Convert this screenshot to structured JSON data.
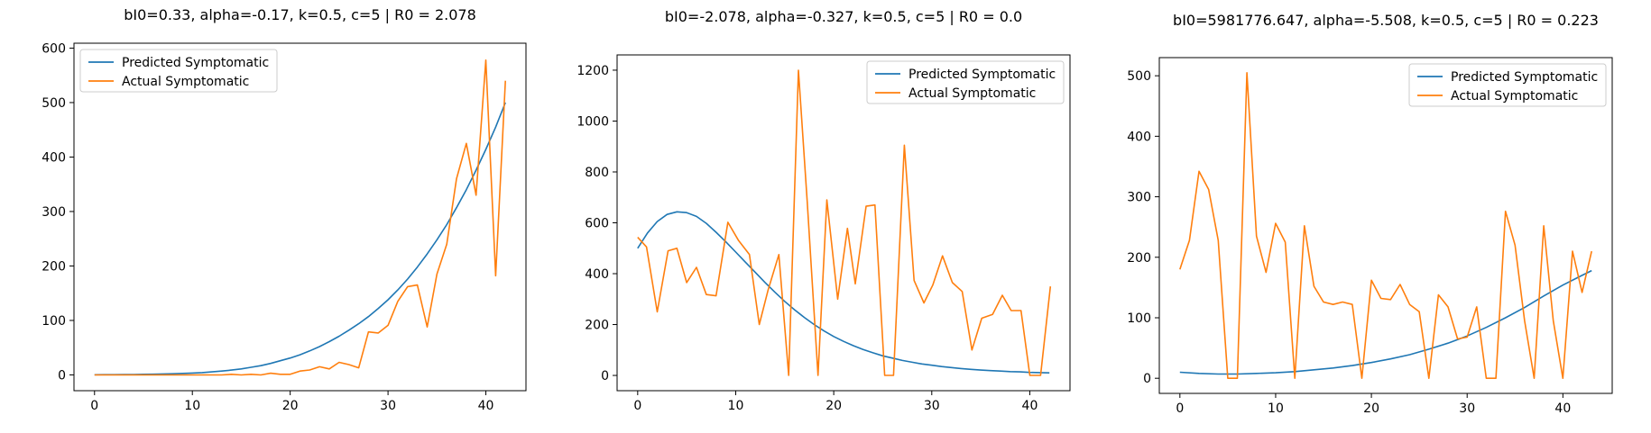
{
  "chart_data": [
    {
      "type": "line",
      "title": "bI0=0.33, alpha=-0.17, k=0.5, c=5 | R0 = 2.078",
      "xlabel": "",
      "ylabel": "",
      "xlim": [
        -2.1,
        44.1
      ],
      "ylim": [
        -29,
        609
      ],
      "xticks": [
        0,
        10,
        20,
        30,
        40
      ],
      "yticks": [
        0,
        100,
        200,
        300,
        400,
        500,
        600
      ],
      "legend": {
        "placement": "upper-left",
        "entries": [
          "Predicted Symptomatic",
          "Actual Symptomatic"
        ]
      },
      "grid": false,
      "series": [
        {
          "name": "Predicted Symptomatic",
          "color": "#1f77b4",
          "x": [
            0,
            1,
            2,
            3,
            4,
            5,
            6,
            7,
            8,
            9,
            10,
            11,
            12,
            13,
            14,
            15,
            16,
            17,
            18,
            19,
            20,
            21,
            22,
            23,
            24,
            25,
            26,
            27,
            28,
            29,
            30,
            31,
            32,
            33,
            34,
            35,
            36,
            37,
            38,
            39,
            40,
            41,
            42
          ],
          "y": [
            0.3,
            0.4,
            0.5,
            0.6,
            0.8,
            1,
            1.3,
            1.7,
            2.1,
            2.7,
            3.4,
            4.3,
            5.5,
            7,
            8.8,
            11,
            14,
            17,
            21,
            26,
            31,
            37,
            44,
            52,
            61,
            71,
            82,
            94,
            107,
            122,
            138,
            156,
            176,
            198,
            222,
            248,
            276,
            307,
            340,
            376,
            414,
            455,
            500
          ]
        },
        {
          "name": "Actual Symptomatic",
          "color": "#ff7f0e",
          "x": [
            0,
            1,
            2,
            3,
            4,
            5,
            6,
            7,
            8,
            9,
            10,
            11,
            12,
            13,
            14,
            15,
            16,
            17,
            18,
            19,
            20,
            21,
            22,
            23,
            24,
            25,
            26,
            27,
            28,
            29,
            30,
            31,
            32,
            33,
            34,
            35,
            36,
            37,
            38,
            39,
            40,
            41,
            42
          ],
          "y": [
            0,
            0,
            0,
            0,
            0,
            0,
            0,
            0,
            0,
            0,
            0,
            0,
            0,
            0,
            1,
            0,
            1,
            0,
            3,
            1,
            1,
            7,
            9,
            15,
            11,
            23,
            19,
            13,
            79,
            77,
            91,
            135,
            162,
            165,
            88,
            185,
            240,
            360,
            425,
            330,
            578,
            182,
            540
          ]
        }
      ]
    },
    {
      "type": "line",
      "title": "bI0=-2.078, alpha=-0.327, k=0.5, c=5 | R0 = 0.0",
      "xlabel": "",
      "ylabel": "",
      "xlim": [
        -2.1,
        44.1
      ],
      "ylim": [
        -60,
        1260
      ],
      "xticks": [
        0,
        10,
        20,
        30,
        40
      ],
      "yticks": [
        0,
        200,
        400,
        600,
        800,
        1000,
        1200
      ],
      "legend": {
        "placement": "upper-right",
        "entries": [
          "Predicted Symptomatic",
          "Actual Symptomatic"
        ]
      },
      "grid": false,
      "series": [
        {
          "name": "Predicted Symptomatic",
          "color": "#1f77b4",
          "x": [
            0,
            1,
            2,
            3,
            4,
            5,
            6,
            7,
            8,
            9,
            10,
            11,
            12,
            13,
            14,
            15,
            16,
            17,
            18,
            19,
            20,
            21,
            22,
            23,
            24,
            25,
            26,
            27,
            28,
            29,
            30,
            31,
            32,
            33,
            34,
            35,
            36,
            37,
            38,
            39,
            40,
            41,
            42
          ],
          "y": [
            500,
            560,
            605,
            633,
            643,
            640,
            625,
            598,
            563,
            525,
            485,
            445,
            405,
            365,
            327,
            291,
            258,
            228,
            200,
            175,
            153,
            134,
            117,
            102,
            89,
            77,
            68,
            59,
            52,
            45,
            40,
            35,
            31,
            27,
            24,
            21,
            19,
            17,
            15,
            14,
            12,
            11,
            10
          ]
        },
        {
          "name": "Actual Symptomatic",
          "color": "#ff7f0e",
          "x": [
            0,
            0.9,
            2,
            3.1,
            4,
            5,
            6,
            7,
            8,
            9.2,
            10.3,
            11.4,
            12.4,
            13.3,
            14.4,
            15.4,
            16.4,
            17.3,
            18.4,
            19.3,
            20.4,
            21.4,
            22.2,
            23.3,
            24.2,
            25.2,
            26.1,
            27.2,
            28.2,
            29.2,
            30.1,
            31.1,
            32.1,
            33.1,
            34.1,
            35.1,
            36.2,
            37.2,
            38.1,
            39.1,
            40,
            41.1,
            42.1
          ],
          "y": [
            543,
            505,
            250,
            490,
            500,
            365,
            425,
            318,
            313,
            602,
            530,
            475,
            200,
            335,
            475,
            0,
            1200,
            680,
            0,
            690,
            300,
            578,
            360,
            665,
            670,
            0,
            0,
            905,
            373,
            285,
            355,
            470,
            365,
            330,
            100,
            225,
            240,
            315,
            255,
            255,
            0,
            0,
            350
          ]
        }
      ]
    },
    {
      "type": "line",
      "title": "bI0=5981776.647, alpha=-5.508, k=0.5, c=5 | R0 = 0.223",
      "xlabel": "",
      "ylabel": "",
      "xlim": [
        -2.15,
        45.15
      ],
      "ylim": [
        -25,
        530
      ],
      "xticks": [
        0,
        10,
        20,
        30,
        40
      ],
      "yticks": [
        0,
        100,
        200,
        300,
        400,
        500
      ],
      "legend": {
        "placement": "upper-right",
        "entries": [
          "Predicted Symptomatic",
          "Actual Symptomatic"
        ]
      },
      "grid": false,
      "series": [
        {
          "name": "Predicted Symptomatic",
          "color": "#1f77b4",
          "x": [
            0,
            2,
            4,
            6,
            8,
            10,
            12,
            14,
            16,
            18,
            20,
            22,
            24,
            26,
            28,
            30,
            32,
            34,
            36,
            38,
            40,
            42,
            43
          ],
          "y": [
            10,
            8,
            7,
            7,
            8,
            9,
            11,
            14,
            17,
            21,
            26,
            32,
            39,
            48,
            58,
            70,
            84,
            100,
            117,
            136,
            154,
            170,
            178
          ]
        },
        {
          "name": "Actual Symptomatic",
          "color": "#ff7f0e",
          "x": [
            0,
            1,
            2,
            3,
            4,
            5,
            6,
            7,
            8,
            9,
            10,
            11,
            12,
            13,
            14,
            15,
            16,
            17,
            18,
            19,
            20,
            21,
            22,
            23,
            24,
            25,
            26,
            27,
            28,
            29,
            30,
            31,
            32,
            33,
            34,
            35,
            36,
            37,
            38,
            39,
            40,
            41,
            42,
            43
          ],
          "y": [
            180,
            228,
            342,
            312,
            228,
            0,
            0,
            505,
            235,
            175,
            256,
            225,
            0,
            252,
            152,
            126,
            122,
            126,
            122,
            0,
            162,
            132,
            130,
            155,
            122,
            110,
            0,
            138,
            118,
            65,
            68,
            118,
            0,
            0,
            276,
            220,
            95,
            0,
            252,
            95,
            0,
            210,
            142,
            210
          ]
        }
      ]
    }
  ]
}
